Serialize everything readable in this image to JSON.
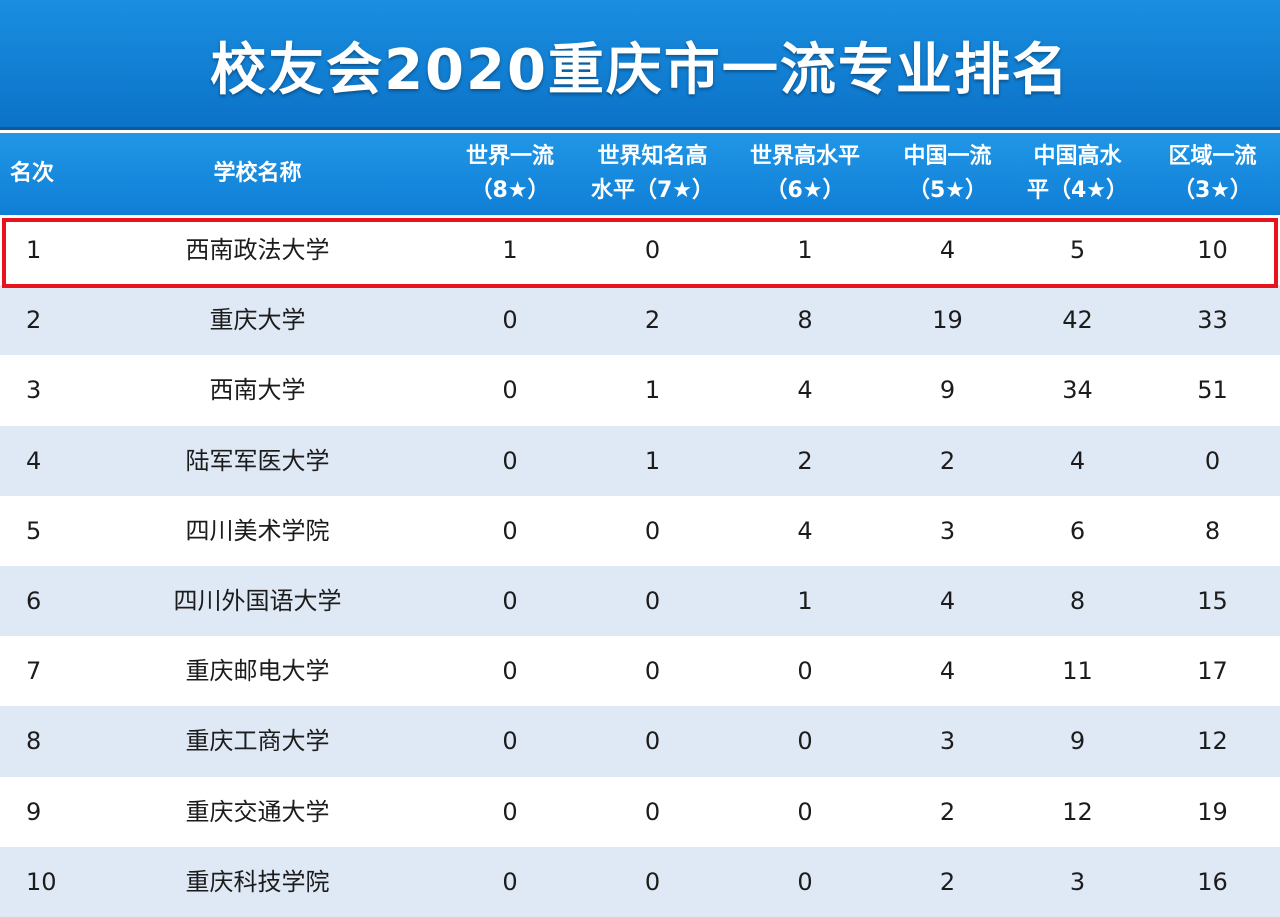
{
  "title": "校友会2020重庆市一流专业排名",
  "columns": [
    {
      "key": "rank",
      "label": "名次"
    },
    {
      "key": "school",
      "label": "学校名称"
    },
    {
      "key": "c8",
      "line1": "世界一流",
      "line2": "（8★）"
    },
    {
      "key": "c7",
      "line1": "世界知名高",
      "line2": "水平（7★）"
    },
    {
      "key": "c6",
      "line1": "世界高水平",
      "line2": "（6★）"
    },
    {
      "key": "c5",
      "line1": "中国一流",
      "line2": "（5★）"
    },
    {
      "key": "c4",
      "line1": "中国高水",
      "line2": "平（4★）"
    },
    {
      "key": "c3",
      "line1": "区域一流",
      "line2": "（3★）"
    }
  ],
  "rows": [
    {
      "rank": "1",
      "school": "西南政法大学",
      "c8": "1",
      "c7": "0",
      "c6": "1",
      "c5": "4",
      "c4": "5",
      "c3": "10"
    },
    {
      "rank": "2",
      "school": "重庆大学",
      "c8": "0",
      "c7": "2",
      "c6": "8",
      "c5": "19",
      "c4": "42",
      "c3": "33"
    },
    {
      "rank": "3",
      "school": "西南大学",
      "c8": "0",
      "c7": "1",
      "c6": "4",
      "c5": "9",
      "c4": "34",
      "c3": "51"
    },
    {
      "rank": "4",
      "school": "陆军军医大学",
      "c8": "0",
      "c7": "1",
      "c6": "2",
      "c5": "2",
      "c4": "4",
      "c3": "0"
    },
    {
      "rank": "5",
      "school": "四川美术学院",
      "c8": "0",
      "c7": "0",
      "c6": "4",
      "c5": "3",
      "c4": "6",
      "c3": "8"
    },
    {
      "rank": "6",
      "school": "四川外国语大学",
      "c8": "0",
      "c7": "0",
      "c6": "1",
      "c5": "4",
      "c4": "8",
      "c3": "15"
    },
    {
      "rank": "7",
      "school": "重庆邮电大学",
      "c8": "0",
      "c7": "0",
      "c6": "0",
      "c5": "4",
      "c4": "11",
      "c3": "17"
    },
    {
      "rank": "8",
      "school": "重庆工商大学",
      "c8": "0",
      "c7": "0",
      "c6": "0",
      "c5": "3",
      "c4": "9",
      "c3": "12"
    },
    {
      "rank": "9",
      "school": "重庆交通大学",
      "c8": "0",
      "c7": "0",
      "c6": "0",
      "c5": "2",
      "c4": "12",
      "c3": "19"
    },
    {
      "rank": "10",
      "school": "重庆科技学院",
      "c8": "0",
      "c7": "0",
      "c6": "0",
      "c5": "2",
      "c4": "3",
      "c3": "16"
    }
  ],
  "colors": {
    "title_bg": "#0b72c8",
    "header_bg": "#1688dd",
    "row_alt": "#dfe8f5",
    "highlight_border": "#e8141c"
  }
}
